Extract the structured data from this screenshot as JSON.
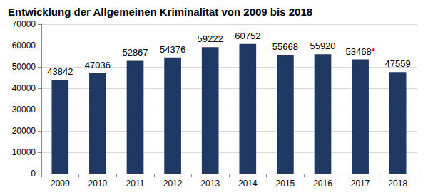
{
  "chart_data": {
    "type": "bar",
    "title": "Entwicklung der Allgemeinen Kriminalität von 2009 bis 2018",
    "categories": [
      "2009",
      "2010",
      "2011",
      "2012",
      "2013",
      "2014",
      "2015",
      "2016",
      "2017",
      "2018"
    ],
    "values": [
      43842,
      47036,
      52867,
      54376,
      59222,
      60752,
      55668,
      55920,
      53468,
      47559
    ],
    "value_labels": [
      "43842",
      "47036",
      "52867",
      "54376",
      "59222",
      "60752",
      "55668",
      "55920",
      "53468*",
      "47559"
    ],
    "color": "#1f3864",
    "ylim": [
      0,
      70000
    ],
    "yticks": [
      0,
      10000,
      20000,
      30000,
      40000,
      50000,
      60000,
      70000
    ],
    "grid": true,
    "data_labels": true
  }
}
